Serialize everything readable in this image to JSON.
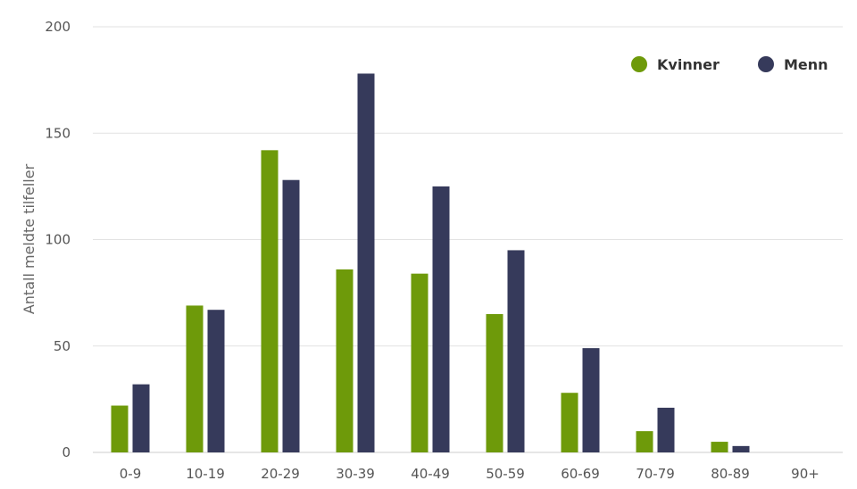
{
  "chart_data": {
    "type": "bar",
    "categories": [
      "0-9",
      "10-19",
      "20-29",
      "30-39",
      "40-49",
      "50-59",
      "60-69",
      "70-79",
      "80-89",
      "90+"
    ],
    "series": [
      {
        "name": "Kvinner",
        "color": "#6e9a0a",
        "values": [
          22,
          69,
          142,
          86,
          84,
          65,
          28,
          10,
          5,
          0
        ]
      },
      {
        "name": "Menn",
        "color": "#363a5b",
        "values": [
          32,
          67,
          128,
          178,
          125,
          95,
          49,
          21,
          3,
          0
        ]
      }
    ],
    "title": "",
    "xlabel": "",
    "ylabel": "Antall meldte tilfeller",
    "ylim": [
      0,
      200
    ],
    "yticks": [
      0,
      50,
      100,
      150,
      200
    ],
    "grid": true,
    "legend_position": "top-right"
  }
}
